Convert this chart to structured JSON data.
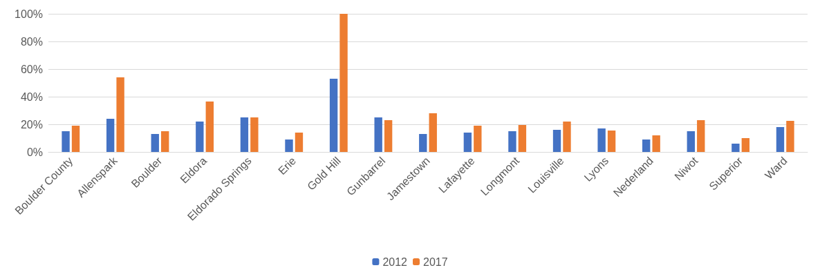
{
  "chart_data": {
    "type": "bar",
    "categories": [
      "Boulder County",
      "Allenspark",
      "Boulder",
      "Eldora",
      "Eldorado Springs",
      "Erie",
      "Gold Hill",
      "Gunbarrel",
      "Jamestown",
      "Lafayette",
      "Longmont",
      "Louisville",
      "Lyons",
      "Nederland",
      "Niwot",
      "Superior",
      "Ward"
    ],
    "series": [
      {
        "name": "2012",
        "color": "#4472c4",
        "values": [
          15,
          24,
          13,
          22,
          25,
          9,
          53,
          25,
          13,
          14,
          15,
          16,
          17,
          9,
          15,
          6,
          18
        ]
      },
      {
        "name": "2017",
        "color": "#ed7d31",
        "values": [
          19,
          54,
          15,
          36.5,
          25,
          14,
          100,
          23,
          28,
          19,
          19.5,
          22,
          15.5,
          12,
          23,
          10,
          22.5
        ]
      }
    ],
    "ylim": [
      0,
      100
    ],
    "yticks": [
      {
        "value": 0,
        "label": "0%"
      },
      {
        "value": 20,
        "label": "20%"
      },
      {
        "value": 40,
        "label": "40%"
      },
      {
        "value": 60,
        "label": "60%"
      },
      {
        "value": 80,
        "label": "80%"
      },
      {
        "value": 100,
        "label": "100%"
      }
    ],
    "grid": "y",
    "legend": "bottom"
  }
}
